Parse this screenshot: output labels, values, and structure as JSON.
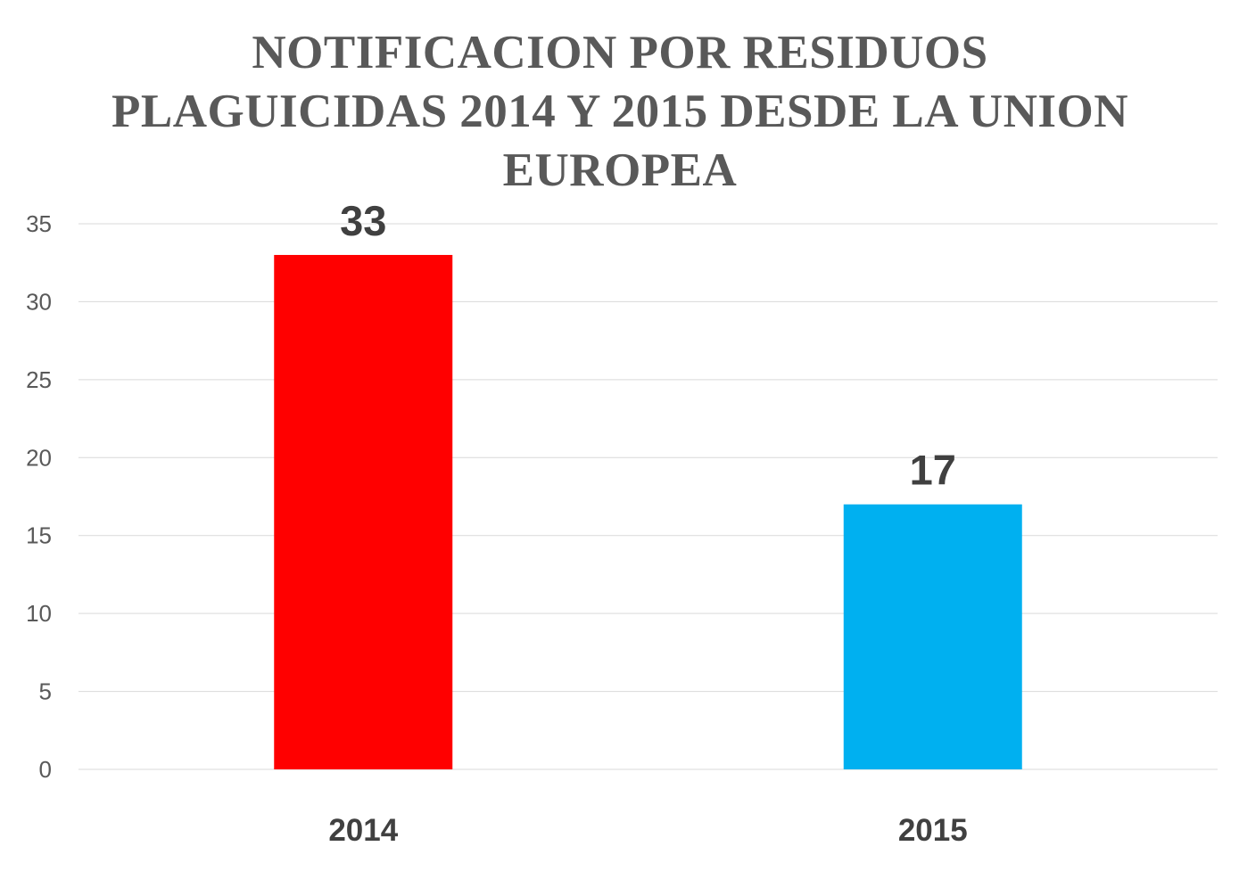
{
  "chart_data": {
    "type": "bar",
    "title": "NOTIFICACION POR RESIDUOS PLAGUICIDAS 2014 Y 2015 DESDE LA UNION EUROPEA",
    "categories": [
      "2014",
      "2015"
    ],
    "values": [
      33,
      17
    ],
    "bar_colors": [
      "#ff0000",
      "#00b0f0"
    ],
    "data_labels": [
      "33",
      "17"
    ],
    "y_ticks": [
      "0",
      "5",
      "10",
      "15",
      "20",
      "25",
      "30",
      "35"
    ],
    "ylim": [
      0,
      35
    ],
    "grid": true,
    "legend": "none",
    "xlabel": "",
    "ylabel": ""
  }
}
